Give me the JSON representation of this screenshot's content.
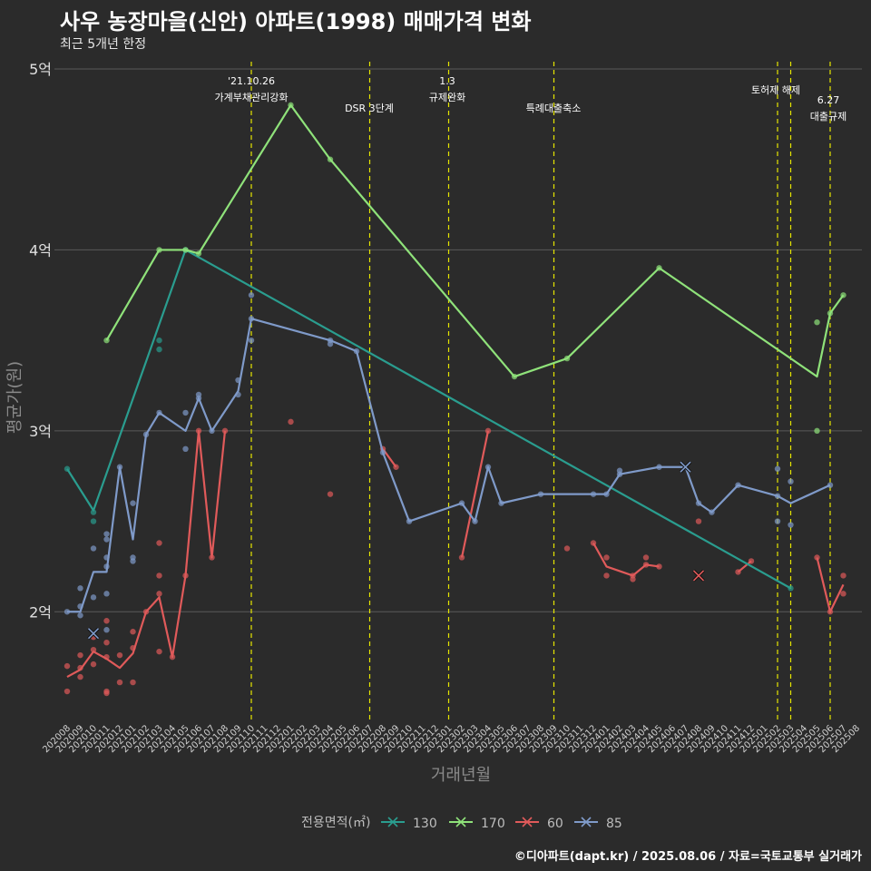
{
  "title": "사우 농장마을(신안) 아파트(1998) 매매가격 변화",
  "subtitle": "최근 5개년 한정",
  "caption": "©디아파트(dapt.kr) / 2025.08.06 / 자료=국토교통부 실거래가",
  "chart_data": {
    "type": "line",
    "xlabel": "거래년월",
    "ylabel": "평균가(원)",
    "x_ticks": [
      "202008",
      "202009",
      "202010",
      "202011",
      "202012",
      "202101",
      "202102",
      "202103",
      "202104",
      "202105",
      "202106",
      "202107",
      "202108",
      "202109",
      "202110",
      "202111",
      "202112",
      "202201",
      "202202",
      "202203",
      "202204",
      "202205",
      "202206",
      "202207",
      "202208",
      "202209",
      "202210",
      "202211",
      "202212",
      "202301",
      "202302",
      "202303",
      "202304",
      "202305",
      "202306",
      "202307",
      "202308",
      "202309",
      "202310",
      "202311",
      "202312",
      "202401",
      "202402",
      "202403",
      "202404",
      "202405",
      "202406",
      "202407",
      "202408",
      "202409",
      "202410",
      "202411",
      "202412",
      "202501",
      "202502",
      "202503",
      "202504",
      "202505",
      "202506",
      "202507",
      "202508"
    ],
    "y_ticks": [
      {
        "value": 2,
        "label": "2억"
      },
      {
        "value": 3,
        "label": "3억"
      },
      {
        "value": 4,
        "label": "4억"
      },
      {
        "value": 5,
        "label": "5억"
      }
    ],
    "ylim": [
      1.4,
      5.05
    ],
    "grid": true,
    "legend_title": "전용면적(㎡)",
    "legend_position": "bottom",
    "events": [
      {
        "x": 14,
        "label": [
          "'21.10.26",
          "가계부채관리강화"
        ]
      },
      {
        "x": 23,
        "label": [
          "DSR 3단계"
        ]
      },
      {
        "x": 29,
        "label": [
          "1.3",
          "규제완화"
        ]
      },
      {
        "x": 37,
        "label": [
          "특례대출축소"
        ]
      },
      {
        "x": 54,
        "label": [
          "토허제 해제"
        ]
      },
      {
        "x": 55,
        "label": []
      },
      {
        "x": 58,
        "label": [
          "6.27",
          "대출규제"
        ]
      }
    ],
    "series": [
      {
        "name": "130",
        "color": "#2a9d8f",
        "line": [
          [
            0,
            2.79
          ],
          [
            2,
            2.56
          ],
          [
            9,
            4.0
          ],
          [
            55,
            2.13
          ]
        ],
        "points": [
          [
            0,
            2.79
          ],
          [
            2,
            2.55
          ],
          [
            2,
            2.5
          ],
          [
            7,
            3.5
          ],
          [
            7,
            3.45
          ],
          [
            9,
            4.0
          ],
          [
            55,
            2.13
          ]
        ],
        "crosses": []
      },
      {
        "name": "170",
        "color": "#8fe27a",
        "line": [
          [
            3,
            3.5
          ],
          [
            7,
            4.0
          ],
          [
            9,
            4.0
          ],
          [
            10,
            3.98
          ],
          [
            17,
            4.8
          ],
          [
            20,
            4.5
          ],
          [
            34,
            3.3
          ],
          [
            38,
            3.4
          ],
          [
            45,
            3.9
          ],
          [
            57,
            3.3
          ],
          [
            58,
            3.65
          ],
          [
            59,
            3.75
          ]
        ],
        "points": [
          [
            3,
            3.5
          ],
          [
            7,
            4.0
          ],
          [
            9,
            4.0
          ],
          [
            10,
            3.98
          ],
          [
            17,
            4.8
          ],
          [
            20,
            4.5
          ],
          [
            34,
            3.3
          ],
          [
            38,
            3.4
          ],
          [
            45,
            3.9
          ],
          [
            57,
            3.6
          ],
          [
            57,
            3.0
          ],
          [
            58,
            3.65
          ],
          [
            59,
            3.75
          ]
        ],
        "crosses": []
      },
      {
        "name": "60",
        "color": "#e05a5a",
        "line": [
          [
            0,
            1.64
          ],
          [
            1,
            1.68
          ],
          [
            2,
            1.78
          ],
          [
            3,
            1.74
          ],
          [
            4,
            1.69
          ],
          [
            5,
            1.77
          ],
          [
            6,
            2.0
          ],
          [
            7,
            2.08
          ],
          [
            8,
            1.75
          ],
          [
            9,
            2.2
          ],
          [
            10,
            3.0
          ],
          [
            11,
            2.3
          ],
          [
            12,
            3.0
          ]
        ],
        "line2": [
          [
            24,
            2.9
          ],
          [
            25,
            2.8
          ]
        ],
        "line3": [
          [
            30,
            2.3
          ],
          [
            32,
            3.0
          ]
        ],
        "line4": [
          [
            40,
            2.38
          ],
          [
            41,
            2.25
          ],
          [
            43,
            2.2
          ],
          [
            44,
            2.26
          ],
          [
            45,
            2.25
          ]
        ],
        "line5": [
          [
            51,
            2.22
          ],
          [
            52,
            2.28
          ]
        ],
        "line6": [
          [
            57,
            2.3
          ],
          [
            58,
            2.0
          ],
          [
            59,
            2.15
          ]
        ],
        "points": [
          [
            0,
            1.56
          ],
          [
            0,
            1.7
          ],
          [
            1,
            1.64
          ],
          [
            1,
            1.69
          ],
          [
            1,
            1.76
          ],
          [
            2,
            1.86
          ],
          [
            2,
            1.79
          ],
          [
            2,
            1.71
          ],
          [
            3,
            1.95
          ],
          [
            3,
            1.83
          ],
          [
            3,
            1.75
          ],
          [
            3,
            1.56
          ],
          [
            3,
            1.55
          ],
          [
            4,
            1.76
          ],
          [
            4,
            1.61
          ],
          [
            5,
            1.89
          ],
          [
            5,
            1.8
          ],
          [
            5,
            1.61
          ],
          [
            6,
            2.0
          ],
          [
            7,
            2.38
          ],
          [
            7,
            2.2
          ],
          [
            7,
            2.1
          ],
          [
            7,
            1.78
          ],
          [
            8,
            1.75
          ],
          [
            9,
            2.2
          ],
          [
            10,
            3.0
          ],
          [
            11,
            2.3
          ],
          [
            12,
            3.0
          ],
          [
            17,
            3.05
          ],
          [
            20,
            2.65
          ],
          [
            24,
            2.9
          ],
          [
            25,
            2.8
          ],
          [
            30,
            2.3
          ],
          [
            32,
            3.0
          ],
          [
            38,
            2.35
          ],
          [
            40,
            2.38
          ],
          [
            41,
            2.3
          ],
          [
            41,
            2.2
          ],
          [
            43,
            2.2
          ],
          [
            43,
            2.18
          ],
          [
            44,
            2.3
          ],
          [
            44,
            2.26
          ],
          [
            45,
            2.25
          ],
          [
            48,
            2.5
          ],
          [
            51,
            2.22
          ],
          [
            52,
            2.28
          ],
          [
            57,
            2.3
          ],
          [
            58,
            2.0
          ],
          [
            59,
            2.2
          ],
          [
            59,
            2.1
          ]
        ],
        "crosses": [
          [
            48,
            2.2
          ]
        ]
      },
      {
        "name": "85",
        "color": "#7f9ac9",
        "line": [
          [
            0,
            2.0
          ],
          [
            1,
            2.0
          ],
          [
            2,
            2.22
          ],
          [
            3,
            2.22
          ],
          [
            4,
            2.8
          ],
          [
            5,
            2.4
          ],
          [
            6,
            2.98
          ],
          [
            7,
            3.1
          ],
          [
            9,
            3.0
          ],
          [
            10,
            3.18
          ],
          [
            11,
            3.0
          ],
          [
            13,
            3.22
          ],
          [
            14,
            3.62
          ],
          [
            20,
            3.5
          ],
          [
            22,
            3.44
          ],
          [
            24,
            2.88
          ],
          [
            26,
            2.5
          ],
          [
            30,
            2.6
          ],
          [
            31,
            2.5
          ],
          [
            32,
            2.8
          ],
          [
            33,
            2.6
          ],
          [
            36,
            2.65
          ],
          [
            40,
            2.65
          ],
          [
            41,
            2.65
          ],
          [
            42,
            2.76
          ],
          [
            45,
            2.8
          ],
          [
            47,
            2.8
          ],
          [
            48,
            2.6
          ],
          [
            49,
            2.55
          ],
          [
            51,
            2.7
          ],
          [
            54,
            2.64
          ],
          [
            55,
            2.6
          ],
          [
            58,
            2.7
          ]
        ],
        "points": [
          [
            0,
            2.0
          ],
          [
            1,
            2.13
          ],
          [
            1,
            2.03
          ],
          [
            1,
            1.98
          ],
          [
            2,
            2.35
          ],
          [
            2,
            2.08
          ],
          [
            3,
            2.43
          ],
          [
            3,
            2.4
          ],
          [
            3,
            2.3
          ],
          [
            3,
            2.25
          ],
          [
            3,
            2.1
          ],
          [
            3,
            1.9
          ],
          [
            4,
            2.8
          ],
          [
            5,
            2.6
          ],
          [
            5,
            2.3
          ],
          [
            5,
            2.28
          ],
          [
            6,
            2.98
          ],
          [
            7,
            3.1
          ],
          [
            9,
            3.1
          ],
          [
            9,
            2.9
          ],
          [
            10,
            3.2
          ],
          [
            10,
            3.18
          ],
          [
            11,
            3.0
          ],
          [
            13,
            3.28
          ],
          [
            13,
            3.2
          ],
          [
            14,
            3.75
          ],
          [
            14,
            3.62
          ],
          [
            14,
            3.5
          ],
          [
            20,
            3.5
          ],
          [
            20,
            3.48
          ],
          [
            22,
            3.44
          ],
          [
            24,
            2.88
          ],
          [
            26,
            2.5
          ],
          [
            30,
            2.6
          ],
          [
            31,
            2.5
          ],
          [
            32,
            2.8
          ],
          [
            33,
            2.6
          ],
          [
            36,
            2.65
          ],
          [
            40,
            2.65
          ],
          [
            41,
            2.65
          ],
          [
            42,
            2.78
          ],
          [
            42,
            2.76
          ],
          [
            45,
            2.8
          ],
          [
            48,
            2.6
          ],
          [
            49,
            2.55
          ],
          [
            51,
            2.7
          ],
          [
            54,
            2.79
          ],
          [
            54,
            2.64
          ],
          [
            54,
            2.5
          ],
          [
            55,
            2.72
          ],
          [
            55,
            2.48
          ],
          [
            58,
            2.7
          ]
        ],
        "crosses": [
          [
            2,
            1.88
          ],
          [
            47,
            2.8
          ]
        ]
      }
    ]
  }
}
